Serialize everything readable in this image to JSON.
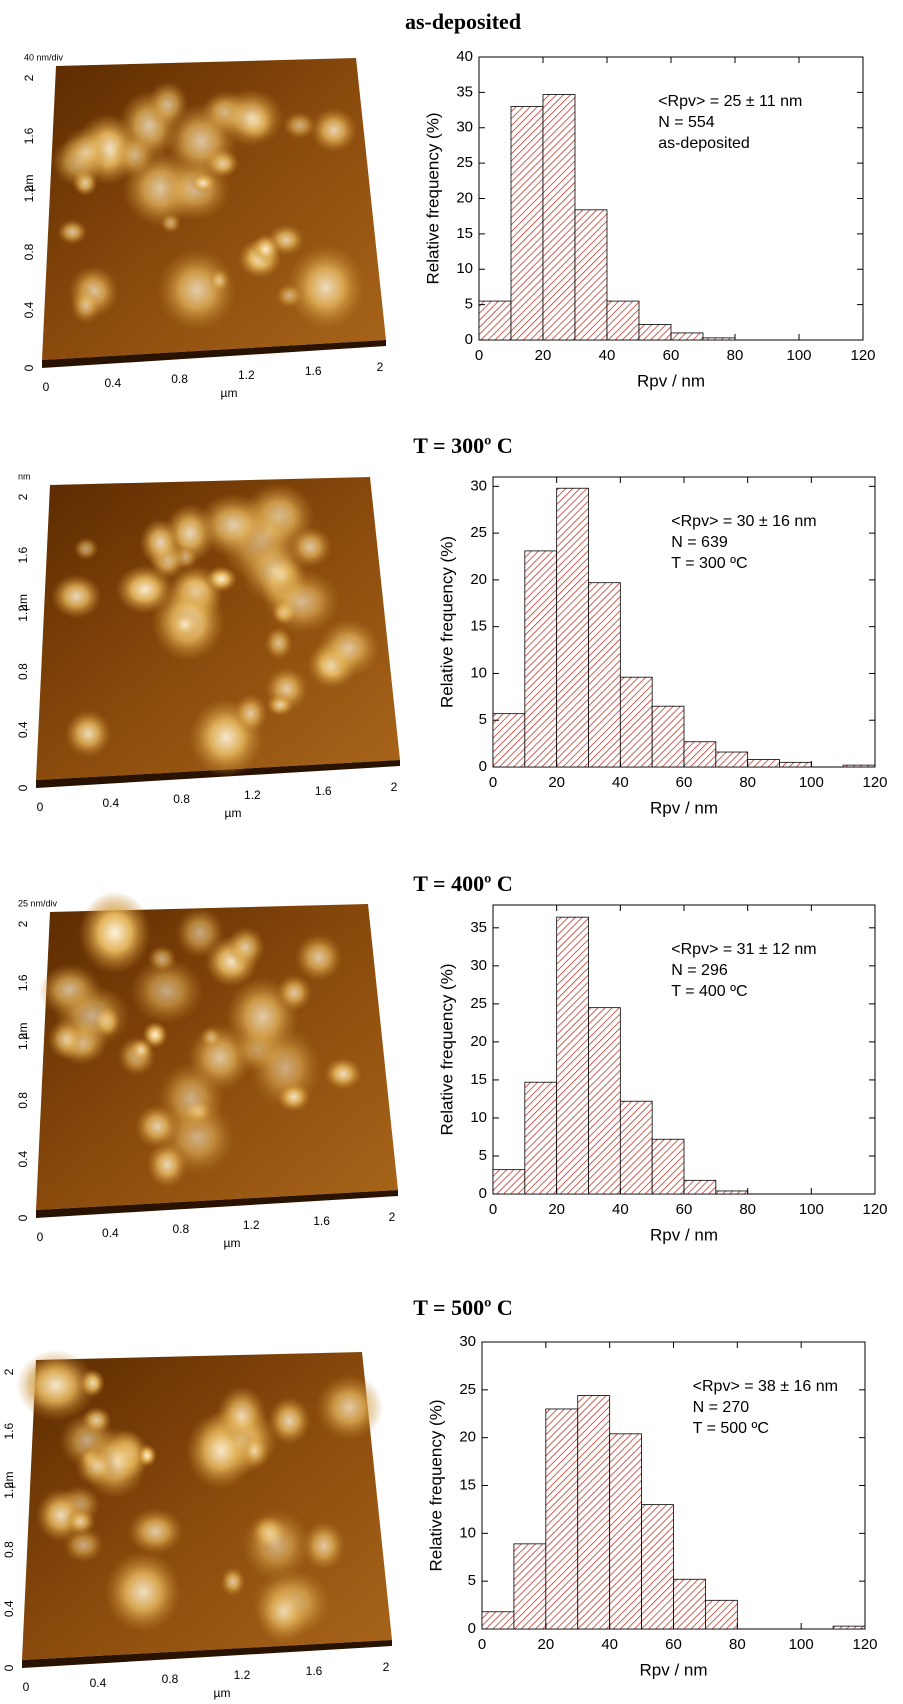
{
  "chart_data": [
    {
      "type": "histogram",
      "title": "as-deposited",
      "bins": [
        0,
        10,
        20,
        30,
        40,
        50,
        60,
        70,
        80,
        90,
        100,
        110,
        120
      ],
      "values": [
        5.5,
        33,
        34.7,
        18.4,
        5.5,
        2.2,
        1.0,
        0.3,
        0,
        0,
        0,
        0
      ],
      "color": "#c0392b",
      "xlim": [
        0,
        120
      ],
      "ylim": [
        0,
        40
      ],
      "xticks": [
        0,
        20,
        40,
        60,
        80,
        100,
        120
      ],
      "yticks": [
        0,
        5,
        10,
        15,
        20,
        25,
        30,
        35,
        40
      ],
      "xlabel": "Rpv  /  nm",
      "ylabel": "Relative frequency  (%)",
      "annotations": [
        "<Rpv> = 25 ± 11 nm",
        "N = 554",
        "as-deposited"
      ]
    },
    {
      "type": "histogram",
      "title": "T = 300º C",
      "bins": [
        0,
        10,
        20,
        30,
        40,
        50,
        60,
        70,
        80,
        90,
        100,
        110,
        120
      ],
      "values": [
        5.7,
        23.1,
        29.8,
        19.7,
        9.6,
        6.5,
        2.7,
        1.6,
        0.8,
        0.5,
        0,
        0.2
      ],
      "color": "#c0392b",
      "xlim": [
        0,
        120
      ],
      "ylim": [
        0,
        31
      ],
      "xticks": [
        0,
        20,
        40,
        60,
        80,
        100,
        120
      ],
      "yticks": [
        0,
        5,
        10,
        15,
        20,
        25,
        30
      ],
      "xlabel": "Rpv  /  nm",
      "ylabel": "Relative frequency  (%)",
      "annotations": [
        "<Rpv> = 30 ± 16 nm",
        "N = 639",
        "T = 300 ºC"
      ]
    },
    {
      "type": "histogram",
      "title": "T = 400º C",
      "bins": [
        0,
        10,
        20,
        30,
        40,
        50,
        60,
        70,
        80,
        90,
        100,
        110,
        120
      ],
      "values": [
        3.2,
        14.7,
        36.4,
        24.5,
        12.2,
        7.2,
        1.8,
        0.4,
        0,
        0,
        0,
        0
      ],
      "color": "#c0392b",
      "xlim": [
        0,
        120
      ],
      "ylim": [
        0,
        38
      ],
      "xticks": [
        0,
        20,
        40,
        60,
        80,
        100,
        120
      ],
      "yticks": [
        0,
        5,
        10,
        15,
        20,
        25,
        30,
        35
      ],
      "xlabel": "Rpv  /  nm",
      "ylabel": "Relative frequency  (%)",
      "annotations": [
        "<Rpv> = 31 ± 12 nm",
        "N = 296",
        "T = 400 ºC"
      ]
    },
    {
      "type": "histogram",
      "title": "T = 500º C",
      "bins": [
        0,
        10,
        20,
        30,
        40,
        50,
        60,
        70,
        80,
        90,
        100,
        110,
        120
      ],
      "values": [
        1.8,
        8.9,
        23,
        24.4,
        20.4,
        13,
        5.2,
        3.0,
        0,
        0,
        0,
        0.3
      ],
      "color": "#c0392b",
      "xlim": [
        0,
        120
      ],
      "ylim": [
        0,
        30
      ],
      "xticks": [
        0,
        20,
        40,
        60,
        80,
        100,
        120
      ],
      "yticks": [
        0,
        5,
        10,
        15,
        20,
        25,
        30
      ],
      "xlabel": "Rpv  /  nm",
      "ylabel": "Relative frequency  (%)",
      "annotations": [
        "<Rpv> = 38 ± 16 nm",
        "N = 270",
        "T = 500 ºC"
      ]
    }
  ],
  "afm_images": [
    {
      "scale_label": "40 nm/div",
      "xticks": [
        0,
        0.4,
        0.8,
        1.2,
        1.6,
        2
      ],
      "yticks": [
        0,
        0.4,
        0.8,
        1.2,
        1.6,
        2
      ],
      "xlabel": "µm",
      "ylabel": "µm"
    },
    {
      "scale_label": "nm",
      "xticks": [
        0,
        0.4,
        0.8,
        1.2,
        1.6,
        2
      ],
      "yticks": [
        0,
        0.4,
        0.8,
        1.2,
        1.6,
        2
      ],
      "xlabel": "µm",
      "ylabel": "µm"
    },
    {
      "scale_label": "25 nm/div",
      "xticks": [
        0,
        0.4,
        0.8,
        1.2,
        1.6,
        2
      ],
      "yticks": [
        0,
        0.4,
        0.8,
        1.2,
        1.6,
        2
      ],
      "xlabel": "µm",
      "ylabel": "µm"
    },
    {
      "xticks": [
        0,
        0.4,
        0.8,
        1.2,
        1.6,
        2
      ],
      "yticks": [
        0,
        0.4,
        0.8,
        1.2,
        1.6,
        2
      ],
      "xlabel": "µm",
      "ylabel": "µm"
    }
  ]
}
